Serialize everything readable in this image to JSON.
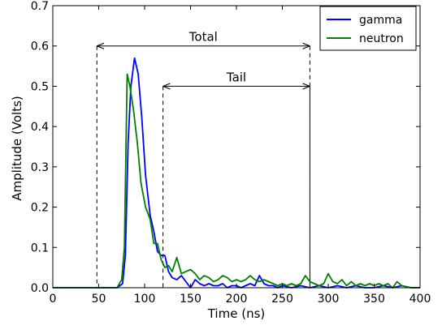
{
  "chart_data": {
    "type": "line",
    "xlabel": "Time (ns)",
    "ylabel": "Amplitude (Volts)",
    "xlim": [
      0,
      400
    ],
    "ylim": [
      0,
      0.7
    ],
    "xticks": [
      0,
      50,
      100,
      150,
      200,
      250,
      300,
      350,
      400
    ],
    "yticks": [
      0.0,
      0.1,
      0.2,
      0.3,
      0.4,
      0.5,
      0.6,
      0.7
    ],
    "xtick_labels": [
      "0",
      "50",
      "100",
      "150",
      "200",
      "250",
      "300",
      "350",
      "400"
    ],
    "ytick_labels": [
      "0.0",
      "0.1",
      "0.2",
      "0.3",
      "0.4",
      "0.5",
      "0.6",
      "0.7"
    ],
    "grid": false,
    "legend_position": "top-right",
    "series": [
      {
        "name": "gamma",
        "color": "#0000ff",
        "x": [
          0,
          70,
          76,
          79,
          82,
          85,
          89,
          93,
          97,
          101,
          106,
          110,
          114,
          118,
          122,
          126,
          130,
          135,
          140,
          145,
          150,
          155,
          160,
          165,
          170,
          175,
          180,
          185,
          190,
          195,
          200,
          205,
          210,
          215,
          220,
          225,
          230,
          235,
          240,
          245,
          250,
          260,
          270,
          280,
          290,
          300,
          310,
          320,
          330,
          340,
          350,
          360,
          370,
          380,
          390,
          400
        ],
        "y": [
          0.0,
          0.0,
          0.01,
          0.08,
          0.36,
          0.5,
          0.57,
          0.53,
          0.42,
          0.28,
          0.18,
          0.14,
          0.09,
          0.08,
          0.08,
          0.04,
          0.025,
          0.02,
          0.03,
          0.015,
          0.0,
          0.02,
          0.01,
          0.005,
          0.01,
          0.005,
          0.005,
          0.01,
          0.0,
          0.005,
          0.005,
          0.0,
          0.005,
          0.01,
          0.005,
          0.03,
          0.01,
          0.005,
          0.005,
          0.0,
          0.005,
          0.0,
          0.005,
          0.0,
          0.005,
          0.0,
          0.005,
          0.0,
          0.005,
          0.0,
          0.0,
          0.005,
          0.0,
          0.005,
          0.0,
          0.0
        ]
      },
      {
        "name": "neutron",
        "color": "#008000",
        "x": [
          0,
          70,
          75,
          78,
          81,
          84,
          88,
          92,
          96,
          101,
          106,
          110,
          114,
          118,
          122,
          126,
          130,
          135,
          140,
          145,
          150,
          155,
          160,
          165,
          170,
          175,
          180,
          185,
          190,
          195,
          200,
          205,
          210,
          215,
          220,
          225,
          230,
          235,
          240,
          245,
          250,
          255,
          260,
          265,
          270,
          275,
          280,
          285,
          290,
          295,
          300,
          305,
          310,
          315,
          320,
          325,
          330,
          335,
          340,
          345,
          350,
          355,
          360,
          365,
          370,
          375,
          380,
          390,
          400
        ],
        "y": [
          0.0,
          0.0,
          0.02,
          0.1,
          0.53,
          0.5,
          0.44,
          0.36,
          0.26,
          0.2,
          0.17,
          0.11,
          0.11,
          0.07,
          0.05,
          0.055,
          0.04,
          0.075,
          0.035,
          0.04,
          0.045,
          0.035,
          0.02,
          0.03,
          0.025,
          0.015,
          0.02,
          0.03,
          0.025,
          0.015,
          0.02,
          0.015,
          0.02,
          0.03,
          0.02,
          0.015,
          0.02,
          0.015,
          0.01,
          0.005,
          0.01,
          0.005,
          0.01,
          0.005,
          0.01,
          0.03,
          0.015,
          0.01,
          0.005,
          0.01,
          0.035,
          0.015,
          0.01,
          0.02,
          0.005,
          0.015,
          0.005,
          0.01,
          0.005,
          0.01,
          0.005,
          0.01,
          0.005,
          0.01,
          0.0,
          0.015,
          0.005,
          0.0,
          0.0
        ]
      }
    ],
    "annotations": [
      {
        "label": "Total",
        "x_start": 48,
        "x_end": 280,
        "y_arrow": 0.6,
        "y_bottom": 0.0
      },
      {
        "label": "Tail",
        "x_start": 120,
        "x_end": 280,
        "y_arrow": 0.5,
        "y_bottom": 0.0
      }
    ]
  }
}
